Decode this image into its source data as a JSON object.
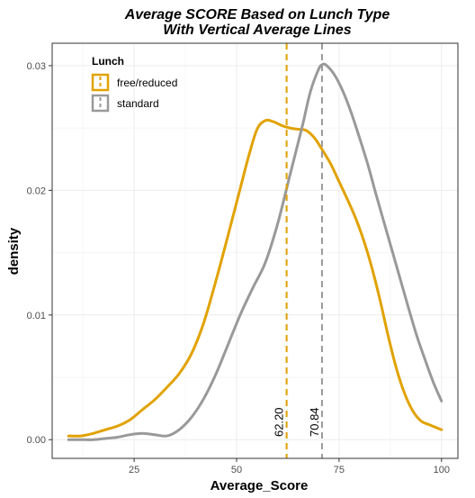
{
  "chart_data": {
    "type": "line",
    "title_line1": "Average SCORE Based on Lunch Type",
    "title_line2": "With Vertical Average Lines",
    "xlabel": "Average_Score",
    "ylabel": "density",
    "xlim": [
      5,
      104
    ],
    "ylim": [
      -0.0015,
      0.0318
    ],
    "x_ticks": [
      25,
      50,
      75,
      100
    ],
    "y_ticks": [
      0.0,
      0.01,
      0.02,
      0.03
    ],
    "y_tick_labels": [
      "0.00",
      "0.01",
      "0.02",
      "0.03"
    ],
    "grid": true,
    "legend": {
      "title": "Lunch",
      "position": "top-left",
      "entries": [
        {
          "label": "free/reduced",
          "color": "#E1A200"
        },
        {
          "label": "standard",
          "color": "#999999"
        }
      ]
    },
    "series": [
      {
        "name": "free/reduced",
        "color": "#E1A200",
        "x": [
          9,
          12,
          15,
          18,
          21,
          24,
          27,
          30,
          33,
          36,
          39,
          42,
          45,
          48,
          51,
          53,
          55,
          57,
          59,
          61,
          63,
          65,
          67,
          69,
          71,
          73,
          75,
          77,
          79,
          81,
          83,
          85,
          87,
          89,
          91,
          93,
          95,
          97,
          100
        ],
        "y": [
          0.0003,
          0.0003,
          0.0005,
          0.0008,
          0.0011,
          0.0016,
          0.0024,
          0.0032,
          0.0042,
          0.0053,
          0.0069,
          0.0094,
          0.0128,
          0.0165,
          0.0203,
          0.0228,
          0.0249,
          0.0256,
          0.0255,
          0.0252,
          0.025,
          0.0249,
          0.0248,
          0.0242,
          0.0232,
          0.0221,
          0.0207,
          0.0193,
          0.0178,
          0.016,
          0.0138,
          0.0112,
          0.0083,
          0.0057,
          0.0037,
          0.0023,
          0.0015,
          0.0012,
          0.0008
        ]
      },
      {
        "name": "standard",
        "color": "#999999",
        "x": [
          9,
          12,
          15,
          18,
          21,
          24,
          27,
          30,
          33,
          36,
          39,
          42,
          45,
          48,
          51,
          54,
          57,
          60,
          63,
          66,
          68,
          70,
          71,
          72,
          74,
          76,
          78,
          80,
          82,
          84,
          86,
          88,
          90,
          92,
          94,
          96,
          98,
          100
        ],
        "y": [
          0.0,
          0.0,
          0.0,
          0.0001,
          0.0002,
          0.0004,
          0.0005,
          0.0004,
          0.0003,
          0.0008,
          0.0018,
          0.0033,
          0.0053,
          0.0077,
          0.0101,
          0.0122,
          0.0142,
          0.0173,
          0.0212,
          0.0251,
          0.0279,
          0.0297,
          0.0301,
          0.03,
          0.0292,
          0.0279,
          0.0262,
          0.0242,
          0.0221,
          0.0197,
          0.0174,
          0.0151,
          0.0128,
          0.0105,
          0.0083,
          0.0064,
          0.0046,
          0.0031
        ]
      }
    ],
    "vlines": [
      {
        "x": 62.2,
        "label": "62.20",
        "color": "#E1A200"
      },
      {
        "x": 70.84,
        "label": "70.84",
        "color": "#999999"
      }
    ]
  }
}
